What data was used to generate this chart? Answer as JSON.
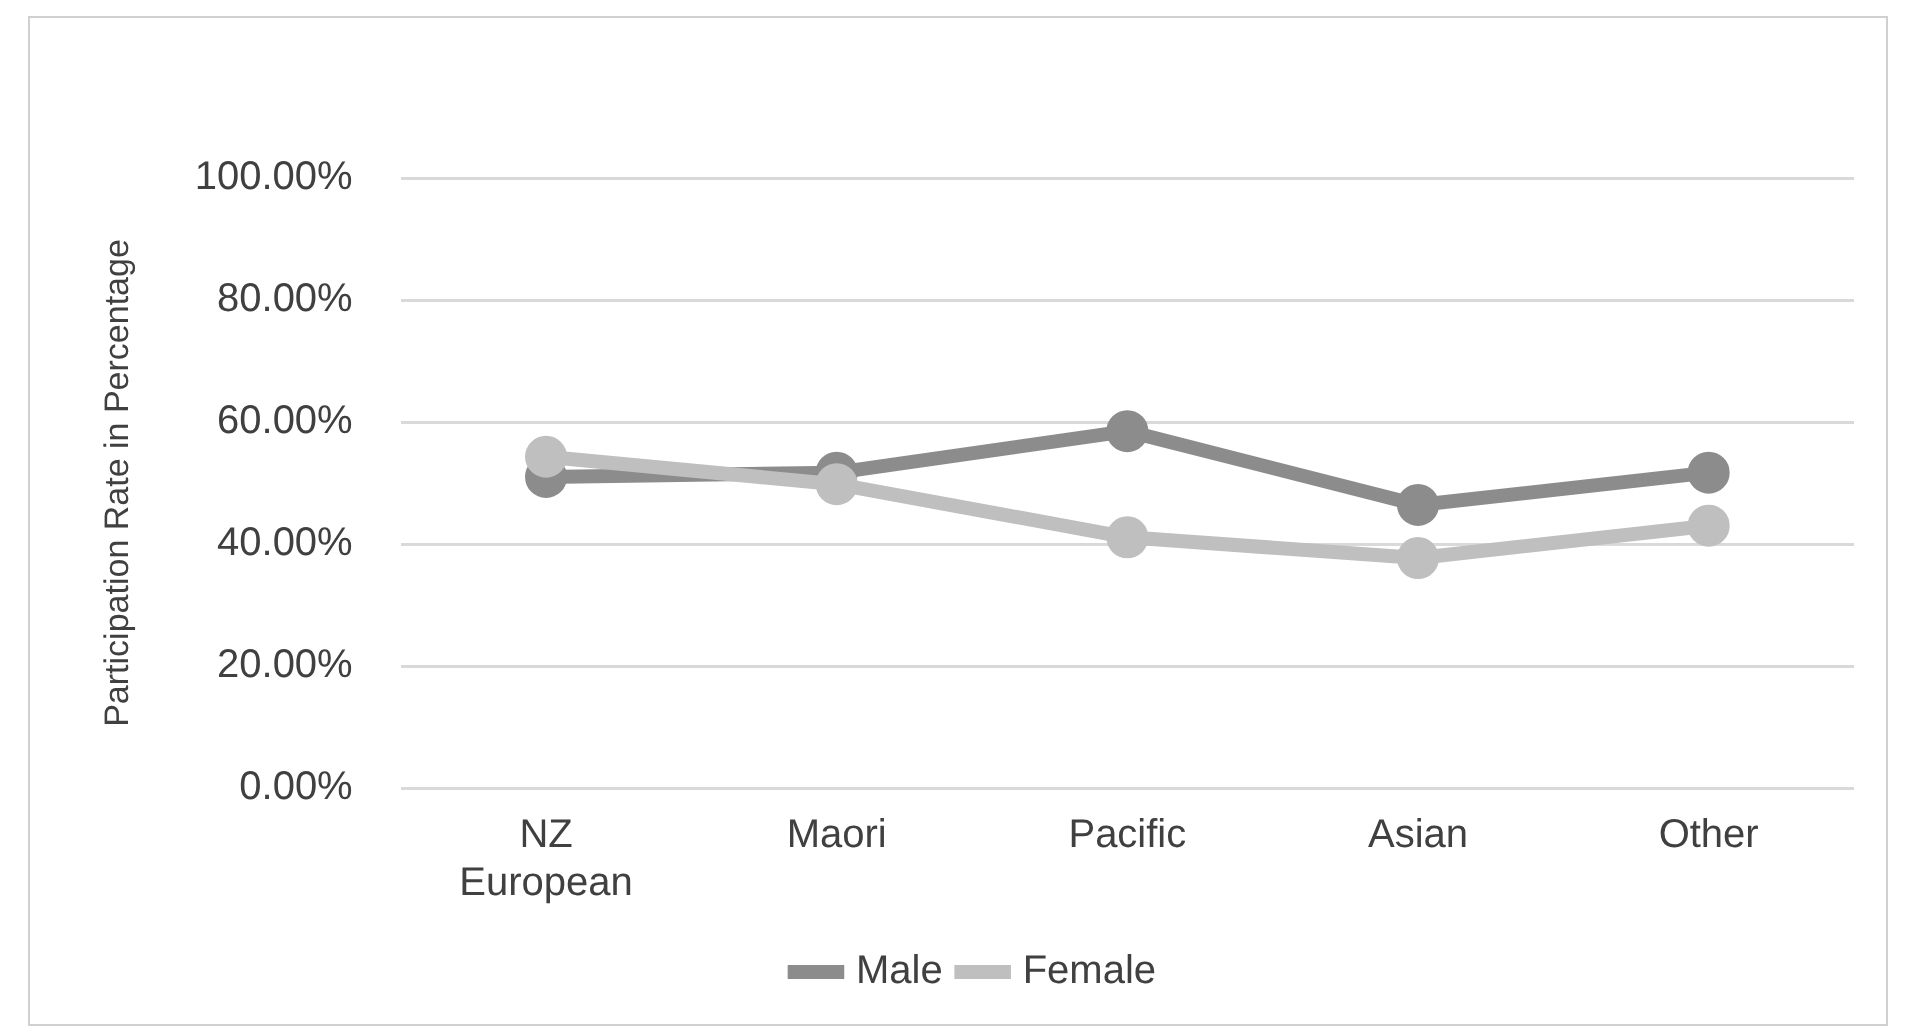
{
  "chart_data": {
    "type": "line",
    "ylabel": "Participation Rate in Percentage",
    "categories": [
      "NZ European",
      "Maori",
      "Pacific",
      "Asian",
      "Other"
    ],
    "series": [
      {
        "name": "Male",
        "color": "#8c8c8c",
        "values": [
          51,
          51.7,
          58.5,
          46.4,
          51.7
        ]
      },
      {
        "name": "Female",
        "color": "#bfbfbf",
        "values": [
          54.3,
          49.8,
          41.1,
          37.7,
          43
        ]
      }
    ],
    "ylim": [
      0,
      100
    ],
    "yticks": [
      {
        "value": 0,
        "label": "0.00%"
      },
      {
        "value": 20,
        "label": "20.00%"
      },
      {
        "value": 40,
        "label": "40.00%"
      },
      {
        "value": 60,
        "label": "60.00%"
      },
      {
        "value": 80,
        "label": "80.00%"
      },
      {
        "value": 100,
        "label": "100.00%"
      }
    ],
    "grid": "y",
    "legend": "bottom",
    "marker": "circle",
    "line_style": "solid"
  }
}
